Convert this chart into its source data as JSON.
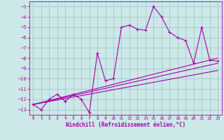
{
  "background_color": "#cce8e8",
  "grid_color": "#aacccc",
  "line_color": "#aa00aa",
  "xlabel": "Windchill (Refroidissement éolien,°C)",
  "xlim": [
    -0.5,
    23.5
  ],
  "ylim": [
    -13.5,
    -2.5
  ],
  "xticks": [
    0,
    1,
    2,
    3,
    4,
    5,
    6,
    7,
    8,
    9,
    10,
    11,
    12,
    13,
    14,
    15,
    16,
    17,
    18,
    19,
    20,
    21,
    22,
    23
  ],
  "yticks": [
    -13,
    -12,
    -11,
    -10,
    -9,
    -8,
    -7,
    -6,
    -5,
    -4,
    -3
  ],
  "main_x": [
    0,
    1,
    2,
    3,
    4,
    5,
    6,
    7,
    8,
    9,
    10,
    11,
    12,
    13,
    14,
    15,
    16,
    17,
    18,
    19,
    20,
    21,
    22,
    23
  ],
  "main_y": [
    -12.5,
    -13.0,
    -12.0,
    -11.5,
    -12.2,
    -11.5,
    -12.0,
    -13.3,
    -7.5,
    -10.2,
    -10.0,
    -5.0,
    -4.8,
    -5.2,
    -5.3,
    -3.0,
    -4.0,
    -5.5,
    -6.0,
    -6.3,
    -8.5,
    -5.0,
    -8.2,
    -8.3
  ],
  "trend1_x": [
    0,
    23
  ],
  "trend1_y": [
    -12.5,
    -8.0
  ],
  "trend2_x": [
    0,
    23
  ],
  "trend2_y": [
    -12.5,
    -8.5
  ],
  "trend3_x": [
    0,
    23
  ],
  "trend3_y": [
    -12.5,
    -9.2
  ]
}
